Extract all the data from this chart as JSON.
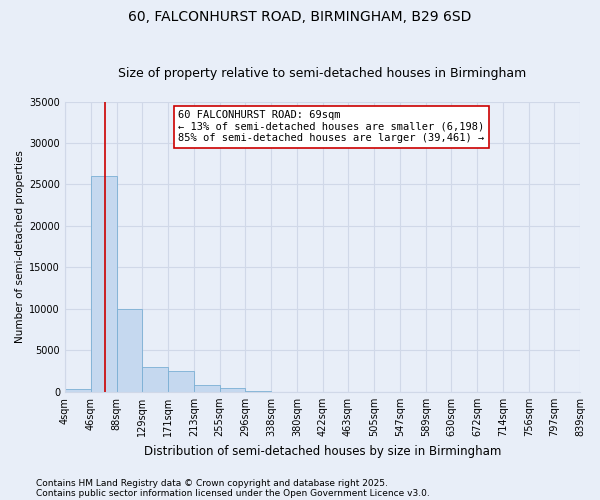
{
  "title": "60, FALCONHURST ROAD, BIRMINGHAM, B29 6SD",
  "subtitle": "Size of property relative to semi-detached houses in Birmingham",
  "xlabel": "Distribution of semi-detached houses by size in Birmingham",
  "ylabel": "Number of semi-detached properties",
  "footnote1": "Contains HM Land Registry data © Crown copyright and database right 2025.",
  "footnote2": "Contains public sector information licensed under the Open Government Licence v3.0.",
  "annotation_title": "60 FALCONHURST ROAD: 69sqm",
  "annotation_line2": "← 13% of semi-detached houses are smaller (6,198)",
  "annotation_line3": "85% of semi-detached houses are larger (39,461) →",
  "property_size": 69,
  "bin_edges": [
    4,
    46,
    88,
    129,
    171,
    213,
    255,
    296,
    338,
    380,
    422,
    463,
    505,
    547,
    589,
    630,
    672,
    714,
    756,
    797,
    839
  ],
  "bar_values": [
    300,
    26000,
    10000,
    3000,
    2500,
    800,
    500,
    150,
    0,
    0,
    0,
    0,
    0,
    0,
    0,
    0,
    0,
    0,
    0,
    0
  ],
  "bar_color": "#c5d8ef",
  "bar_edgecolor": "#7aafd4",
  "redline_color": "#cc0000",
  "ylim": [
    0,
    35000
  ],
  "yticks": [
    0,
    5000,
    10000,
    15000,
    20000,
    25000,
    30000,
    35000
  ],
  "background_color": "#e8eef8",
  "grid_color": "#d0d8e8",
  "title_fontsize": 10,
  "subtitle_fontsize": 9,
  "annot_fontsize": 7.5,
  "tick_fontsize": 7,
  "xlabel_fontsize": 8.5,
  "ylabel_fontsize": 7.5,
  "footnote_fontsize": 6.5
}
